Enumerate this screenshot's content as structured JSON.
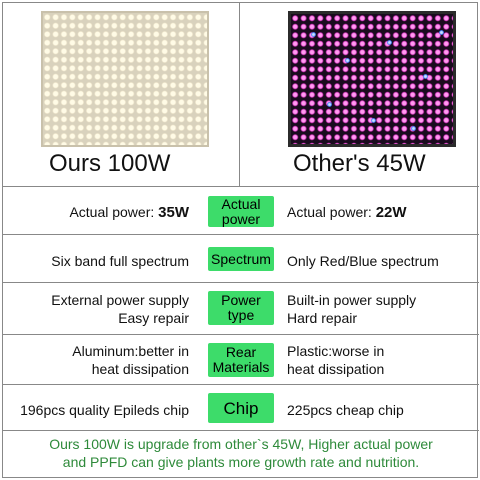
{
  "panels": {
    "left_label": "Ours 100W",
    "right_label": "Other's 45W"
  },
  "rows": [
    {
      "left_prefix": "Actual power: ",
      "left_value": "35W",
      "badge": "Actual\npower",
      "right_prefix": "Actual power: ",
      "right_value": "22W"
    },
    {
      "left": "Six band full spectrum",
      "badge": "Spectrum",
      "right": "Only Red/Blue spectrum"
    },
    {
      "left": "External power supply\nEasy repair",
      "badge": "Power\ntype",
      "right": "Built-in power supply\nHard repair"
    },
    {
      "left": "Aluminum:better in\nheat dissipation",
      "badge": "Rear\nMaterials",
      "right": "Plastic:worse in\nheat dissipation"
    },
    {
      "left": "196pcs quality Epileds chip",
      "badge": "Chip",
      "right": "225pcs cheap chip"
    }
  ],
  "footer": "Ours 100W is upgrade from other`s 45W, Higher actual power\nand PPFD can give plants more growth rate and nutrition.",
  "colors": {
    "badge": "#3ddc6a",
    "footer_text": "#2e8a3a"
  }
}
